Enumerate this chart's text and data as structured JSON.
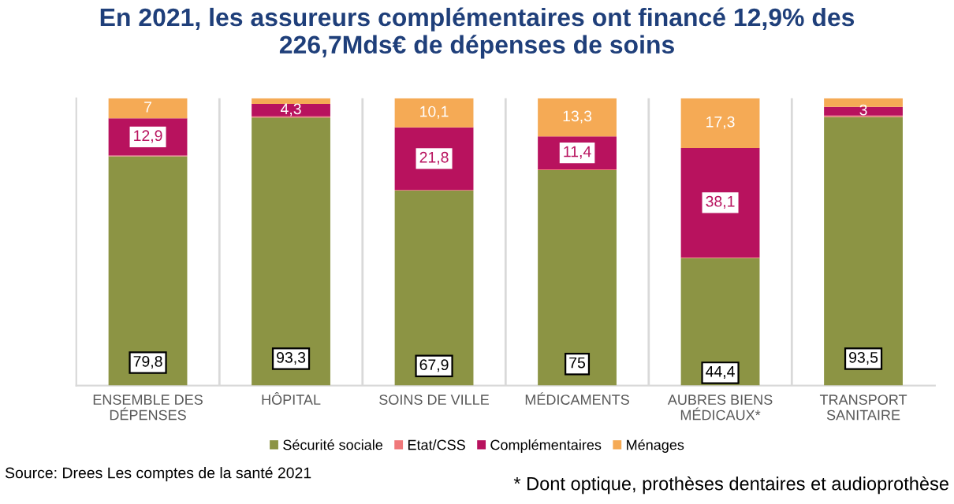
{
  "chart_data": {
    "type": "bar",
    "stacked": true,
    "title": "En 2021, les assureurs complémentaires ont financé 12,9% des\n226,7Mds€ de dépenses de soins",
    "categories": [
      "ENSEMBLE DES\nDÉPENSES",
      "HÔPITAL",
      "SOINS DE VILLE",
      "MÉDICAMENTS",
      "AUBRES BIENS\nMÉDICAUX*",
      "TRANSPORT\nSANITAIRE"
    ],
    "series": [
      {
        "name": "Sécurité sociale",
        "color": "#8c9444",
        "values": [
          79.8,
          93.3,
          67.9,
          75,
          44.4,
          93.5
        ],
        "value_labels": [
          "79,8",
          "93,3",
          "67,9",
          "75",
          "44,4",
          "93,5"
        ]
      },
      {
        "name": "Etat/CSS",
        "color": "#f0787a",
        "values": [
          0.3,
          0.4,
          0.2,
          0.3,
          0.2,
          0.5
        ],
        "value_labels": [
          null,
          null,
          null,
          null,
          null,
          null
        ]
      },
      {
        "name": "Complémentaires",
        "color": "#b8125e",
        "values": [
          12.9,
          4.3,
          21.8,
          11.4,
          38.1,
          3
        ],
        "value_labels": [
          "12,9",
          "4,3",
          "21,8",
          "11,4",
          "38,1",
          "3"
        ]
      },
      {
        "name": "Ménages",
        "color": "#f5aa55",
        "values": [
          7,
          2,
          10.1,
          13.3,
          17.3,
          3
        ],
        "value_labels": [
          "7",
          null,
          "10,1",
          "13,3",
          "17,3",
          null
        ]
      }
    ],
    "ylim": [
      0,
      100
    ],
    "grid": "x",
    "legend": "bottom",
    "tick_labels": "x",
    "annotations": [
      "Source: Drees Les comptes de la santé 2021",
      "* Dont optique, prothèses dentaires et audioprothèse"
    ]
  }
}
